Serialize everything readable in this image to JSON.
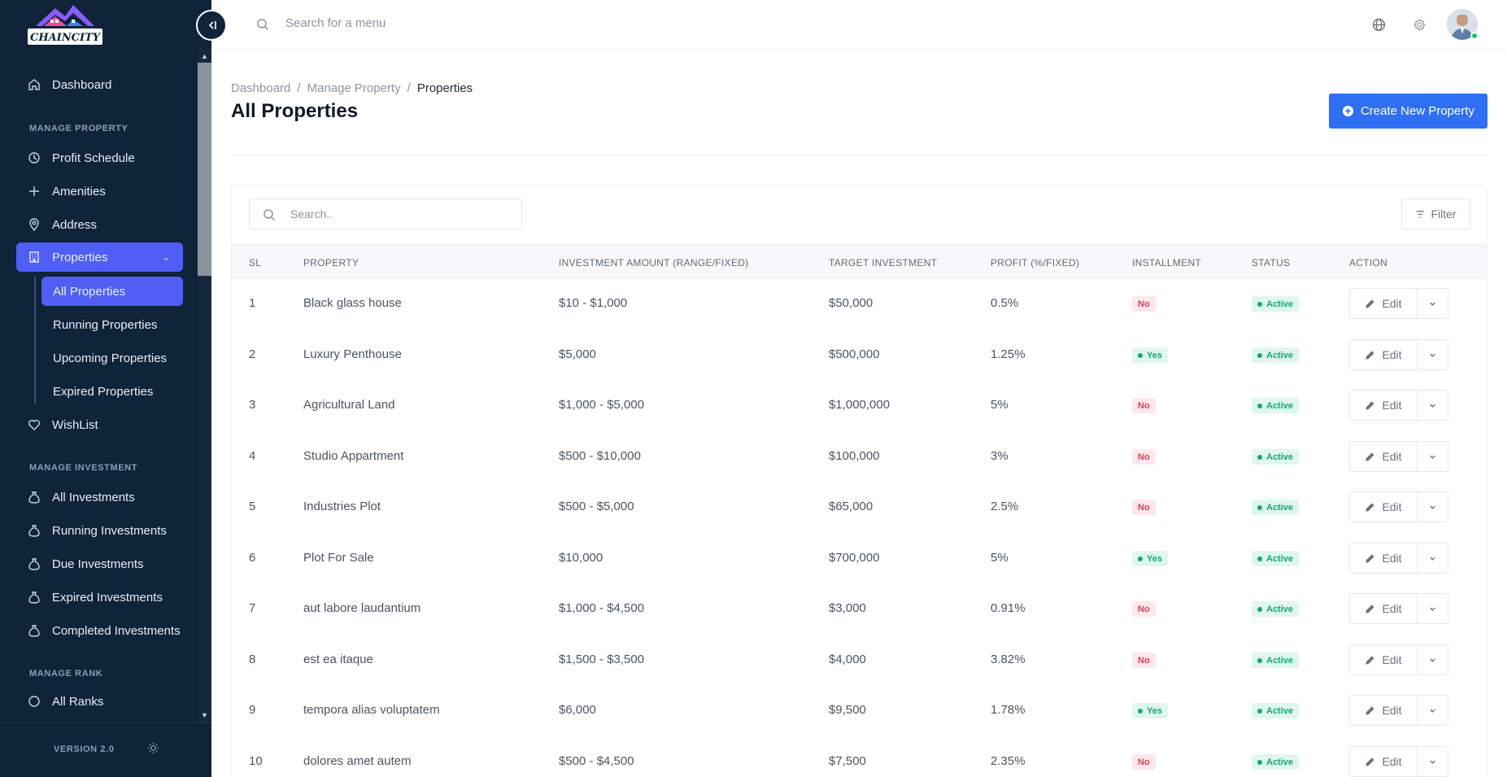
{
  "brand": {
    "logo_text": "CHAINCITY"
  },
  "sidebar": {
    "dashboard": "Dashboard",
    "sections": {
      "property": "MANAGE PROPERTY",
      "investment": "MANAGE INVESTMENT",
      "rank": "MANAGE RANK"
    },
    "property_items": [
      "Profit Schedule",
      "Amenities",
      "Address",
      "Properties",
      "WishList"
    ],
    "properties_sub": [
      "All Properties",
      "Running Properties",
      "Upcoming Properties",
      "Expired Properties"
    ],
    "investment_items": [
      "All Investments",
      "Running Investments",
      "Due Investments",
      "Expired Investments",
      "Completed Investments"
    ],
    "rank_items": [
      "All Ranks"
    ],
    "version": "VERSION 2.0"
  },
  "topbar": {
    "search_placeholder": "Search for a menu"
  },
  "breadcrumb": [
    "Dashboard",
    "Manage Property",
    "Properties"
  ],
  "page_title": "All Properties",
  "create_button": "Create New Property",
  "table": {
    "search_placeholder": "Search..",
    "filter_label": "Filter",
    "headers": [
      "SL",
      "PROPERTY",
      "INVESTMENT AMOUNT (RANGE/FIXED)",
      "TARGET INVESTMENT",
      "PROFIT (%/FIXED)",
      "INSTALLMENT",
      "STATUS",
      "ACTION"
    ],
    "edit_label": "Edit",
    "rows": [
      {
        "sl": "1",
        "property": "Black glass house",
        "amount": "$10 - $1,000",
        "target": "$50,000",
        "profit": "0.5%",
        "installment": "No",
        "status": "Active"
      },
      {
        "sl": "2",
        "property": "Luxury Penthouse",
        "amount": "$5,000",
        "target": "$500,000",
        "profit": "1.25%",
        "installment": "Yes",
        "status": "Active"
      },
      {
        "sl": "3",
        "property": "Agricultural Land",
        "amount": "$1,000 - $5,000",
        "target": "$1,000,000",
        "profit": "5%",
        "installment": "No",
        "status": "Active"
      },
      {
        "sl": "4",
        "property": "Studio Appartment",
        "amount": "$500 - $10,000",
        "target": "$100,000",
        "profit": "3%",
        "installment": "No",
        "status": "Active"
      },
      {
        "sl": "5",
        "property": "Industries Plot",
        "amount": "$500 - $5,000",
        "target": "$65,000",
        "profit": "2.5%",
        "installment": "No",
        "status": "Active"
      },
      {
        "sl": "6",
        "property": "Plot For Sale",
        "amount": "$10,000",
        "target": "$700,000",
        "profit": "5%",
        "installment": "Yes",
        "status": "Active"
      },
      {
        "sl": "7",
        "property": "aut labore laudantium",
        "amount": "$1,000 - $4,500",
        "target": "$3,000",
        "profit": "0.91%",
        "installment": "No",
        "status": "Active"
      },
      {
        "sl": "8",
        "property": "est ea itaque",
        "amount": "$1,500 - $3,500",
        "target": "$4,000",
        "profit": "3.82%",
        "installment": "No",
        "status": "Active"
      },
      {
        "sl": "9",
        "property": "tempora alias voluptatem",
        "amount": "$6,000",
        "target": "$9,500",
        "profit": "1.78%",
        "installment": "Yes",
        "status": "Active"
      },
      {
        "sl": "10",
        "property": "dolores amet autem",
        "amount": "$500 - $4,500",
        "target": "$7,500",
        "profit": "2.35%",
        "installment": "No",
        "status": "Active"
      }
    ]
  },
  "colors": {
    "sidebar_bg": "#0f2339",
    "accent": "#4f5ff6",
    "primary_button": "#2f6ff4",
    "success": "#14a872",
    "danger": "#e03a5a"
  }
}
